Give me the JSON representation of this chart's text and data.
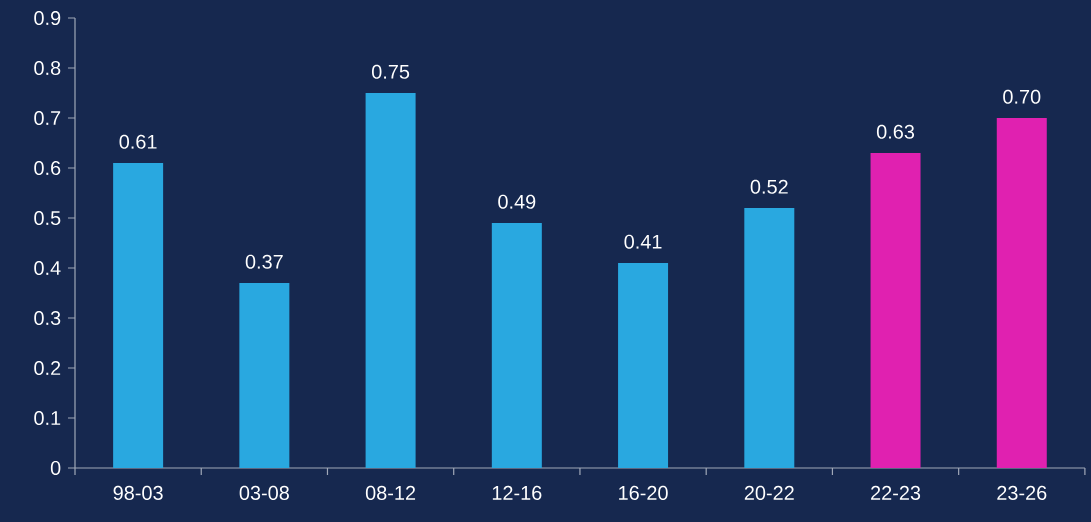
{
  "chart_data": {
    "type": "bar",
    "categories": [
      "98-03",
      "03-08",
      "08-12",
      "12-16",
      "16-20",
      "20-22",
      "22-23",
      "23-26"
    ],
    "values": [
      0.61,
      0.37,
      0.75,
      0.49,
      0.41,
      0.52,
      0.63,
      0.7
    ],
    "colors": [
      "#29a8e0",
      "#29a8e0",
      "#29a8e0",
      "#29a8e0",
      "#29a8e0",
      "#29a8e0",
      "#e021b0",
      "#e021b0"
    ],
    "value_labels": [
      "0.61",
      "0.37",
      "0.75",
      "0.49",
      "0.41",
      "0.52",
      "0.63",
      "0.70"
    ],
    "ylim": [
      0,
      0.9
    ],
    "yticks": [
      0,
      0.1,
      0.2,
      0.3,
      0.4,
      0.5,
      0.6,
      0.7,
      0.8,
      0.9
    ]
  }
}
